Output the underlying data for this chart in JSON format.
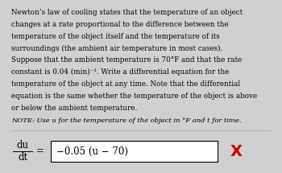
{
  "bg_color": "#d0d0d0",
  "inner_bg": "#ffffff",
  "body_text_lines": [
    "Newton’s law of cooling states that the temperature of an object",
    "changes at a rate proportional to the difference between the",
    "temperature of the object itself and the temperature of its",
    "surroundings (the ambient air temperature in most cases).",
    "Suppose that the ambient temperature is 70°F and that the rate",
    "constant is 0.04 (min)⁻¹. Write a differential equation for the",
    "temperature of the object at any time. Note that the differential",
    "equation is the same whether the temperature of the object is above",
    "or below the ambient temperature."
  ],
  "note_text": "NOTE: Use u for the temperature of the object in °F and t for time.",
  "lhs_numerator": "du",
  "lhs_denominator": "dt",
  "equals": "=",
  "answer_box_text": "−0.05 (u − 70)",
  "cross_color": "#cc0000",
  "cross_text": "X",
  "body_fontsize": 6.3,
  "note_fontsize": 6.0,
  "math_fontsize": 8.5,
  "answer_fontsize": 8.5,
  "cross_fontsize": 14
}
